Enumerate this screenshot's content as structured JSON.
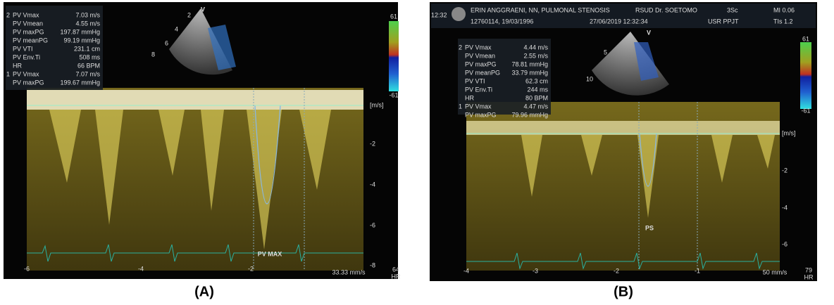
{
  "panels": [
    {
      "label": "(A)",
      "sector_marker": "V",
      "sector_depths": [
        "2",
        "4",
        "6",
        "8"
      ],
      "measurement_groups": [
        {
          "marker": "2",
          "rows": [
            {
              "name": "PV Vmax",
              "value": "7.03 m/s"
            },
            {
              "name": "PV Vmean",
              "value": "4.55 m/s"
            },
            {
              "name": "PV maxPG",
              "value": "197.87 mmHg"
            },
            {
              "name": "PV meanPG",
              "value": "99.19 mmHg"
            },
            {
              "name": "PV VTI",
              "value": "231.1 cm"
            },
            {
              "name": "PV Env.Ti",
              "value": "508 ms"
            },
            {
              "name": "HR",
              "value": "66 BPM"
            }
          ]
        },
        {
          "marker": "1",
          "rows": [
            {
              "name": "PV Vmax",
              "value": "7.07 m/s"
            },
            {
              "name": "PV maxPG",
              "value": "199.67 mmHg"
            }
          ]
        }
      ],
      "colorbar": {
        "top": "61",
        "bottom": "-61"
      },
      "scale_unit": "[m/s]",
      "scale_ticks": [
        "-2",
        "-4",
        "-6",
        "-8"
      ],
      "time_ticks": [
        "-6",
        "-4",
        "-2"
      ],
      "annotation": "PV MAX",
      "sweep": "33.33 mm/s",
      "hr_value": "64",
      "hr_label": "HR"
    },
    {
      "label": "(B)",
      "sector_marker": "V",
      "sector_depths": [
        "5",
        "10"
      ],
      "header": {
        "time": "12:32",
        "patient": "ERIN ANGGRAENI, NN, PULMONAL STENOSIS",
        "hospital": "RSUD Dr. SOETOMO",
        "id": "12760114, 19/03/1996",
        "date": "27/06/2019 12:32:34",
        "probe": "3Sc",
        "user": "USR PPJT",
        "mi": "MI 0.06",
        "tis": "TIs 1.2"
      },
      "measurement_groups": [
        {
          "marker": "2",
          "rows": [
            {
              "name": "PV Vmax",
              "value": "4.44 m/s"
            },
            {
              "name": "PV Vmean",
              "value": "2.55 m/s"
            },
            {
              "name": "PV maxPG",
              "value": "78.81 mmHg"
            },
            {
              "name": "PV meanPG",
              "value": "33.79 mmHg"
            },
            {
              "name": "PV VTI",
              "value": "62.3 cm"
            },
            {
              "name": "PV Env.Ti",
              "value": "244 ms"
            },
            {
              "name": "HR",
              "value": "80 BPM"
            }
          ]
        },
        {
          "marker": "1",
          "rows": [
            {
              "name": "PV Vmax",
              "value": "4.47 m/s"
            },
            {
              "name": "PV maxPG",
              "value": "79.96 mmHg"
            }
          ]
        }
      ],
      "colorbar": {
        "top": "61",
        "bottom": "-61"
      },
      "scale_unit": "[m/s]",
      "scale_ticks": [
        "-2",
        "-4",
        "-6"
      ],
      "time_ticks": [
        "-4",
        "-3",
        "-2",
        "-1"
      ],
      "annotation": "PS",
      "sweep": "50 mm/s",
      "hr_value": "79",
      "hr_label": "HR"
    }
  ]
}
